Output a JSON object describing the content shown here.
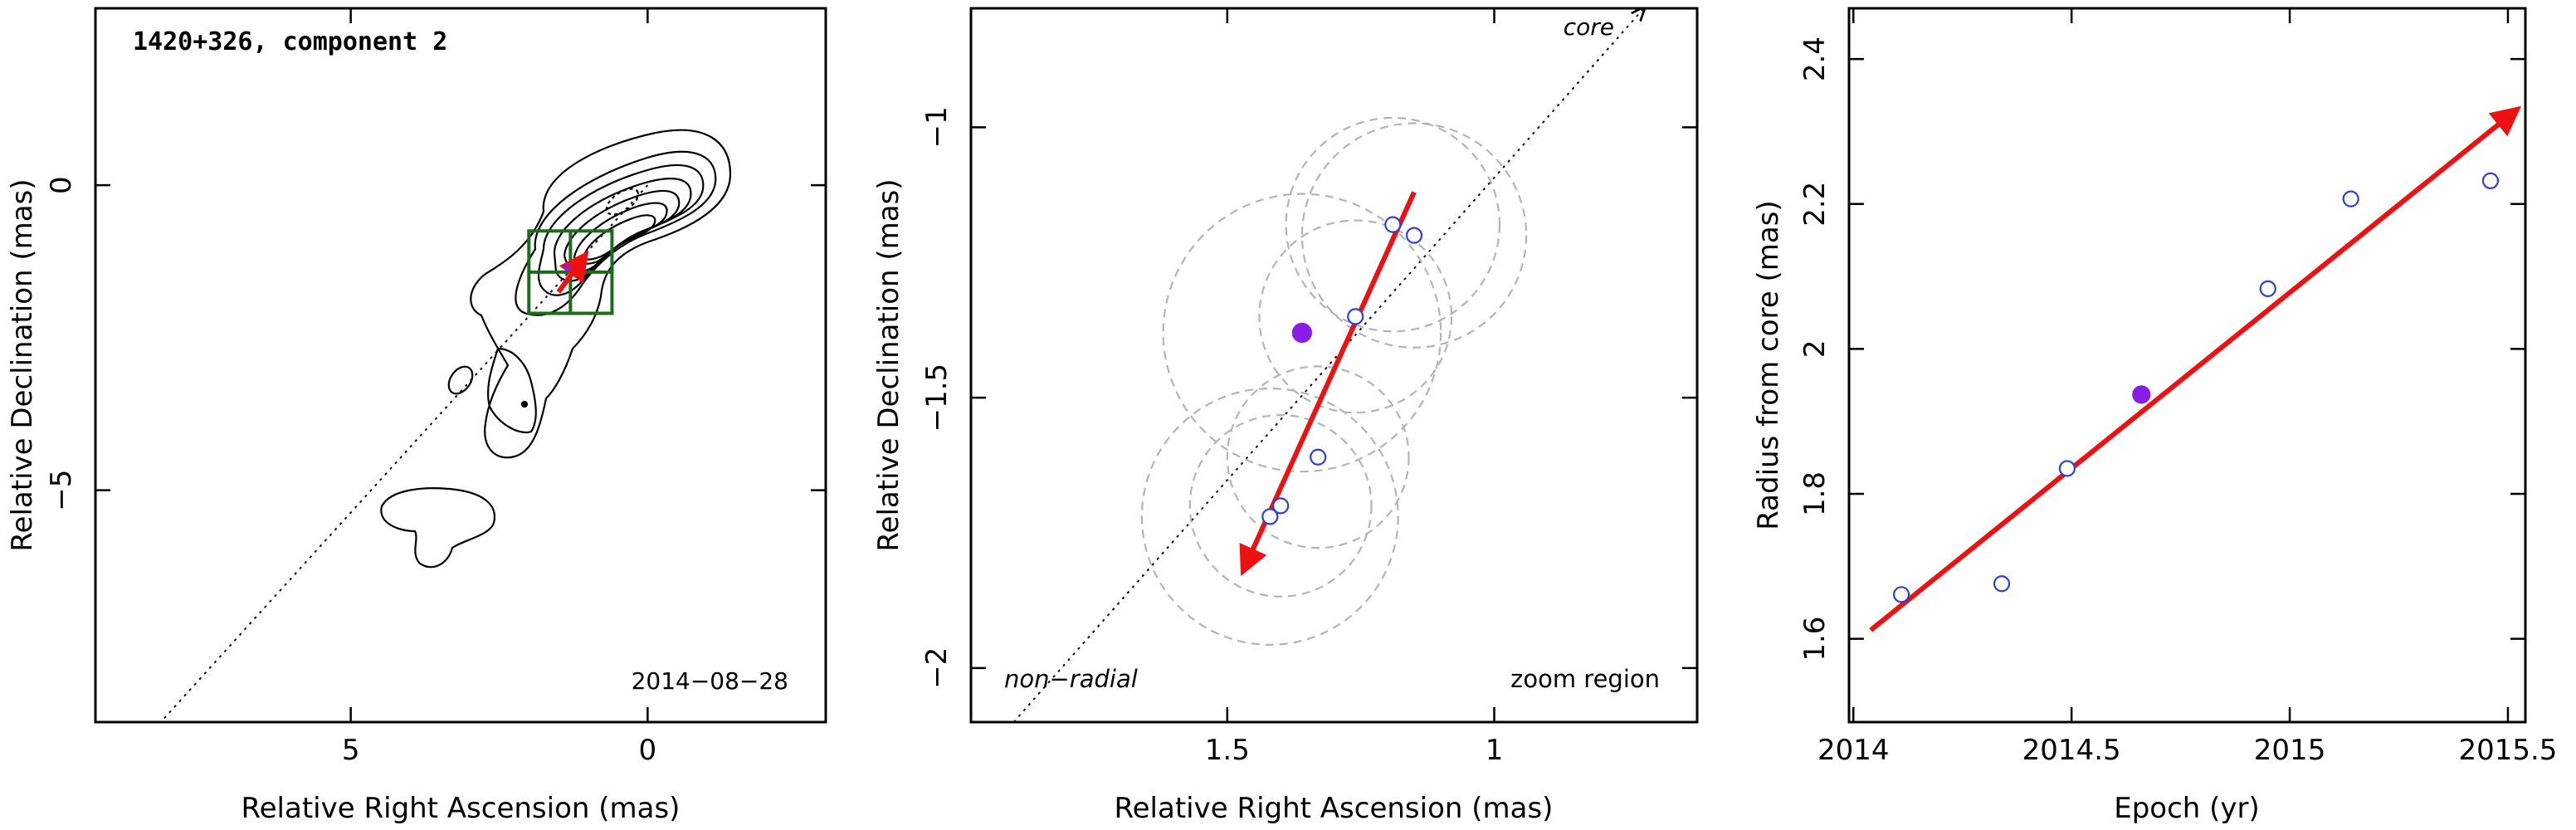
{
  "chart_data": [
    {
      "type": "contour",
      "title": "1420+326, component 2",
      "epoch_label": "2014−08−28",
      "xlabel": "Relative Right Ascension (mas)",
      "ylabel": "Relative Declination (mas)",
      "xlim": [
        9.3,
        -3.0
      ],
      "ylim": [
        -8.8,
        2.9
      ],
      "xticks": [
        {
          "v": 5,
          "label": "5"
        },
        {
          "v": 0,
          "label": "0"
        }
      ],
      "yticks": [
        {
          "v": 0,
          "label": "0"
        },
        {
          "v": -5,
          "label": "−5"
        }
      ],
      "x_reversed": true,
      "component_position": [
        1.35,
        -1.35
      ],
      "grid_box": {
        "x": [
          2.0,
          0.6
        ],
        "y": [
          -0.75,
          -2.1
        ]
      },
      "vector_start": [
        1.5,
        -1.75
      ],
      "vector_end": [
        1.05,
        -1.15
      ],
      "core_line": [
        [
          0,
          0
        ],
        [
          8.2,
          -8.8
        ]
      ]
    },
    {
      "type": "scatter",
      "zoom_label": "zoom region",
      "nonradial_label": "non−radial",
      "core_label": "core",
      "xlabel": "Relative Right Ascension (mas)",
      "ylabel": "Relative Declination (mas)",
      "xlim": [
        1.98,
        0.62
      ],
      "ylim": [
        -2.1,
        -0.78
      ],
      "xticks": [
        {
          "v": 1.5,
          "label": "1.5"
        },
        {
          "v": 1.0,
          "label": "1"
        }
      ],
      "yticks": [
        {
          "v": -1.0,
          "label": "−1"
        },
        {
          "v": -1.5,
          "label": "−1.5"
        },
        {
          "v": -2.0,
          "label": "−2"
        }
      ],
      "x_reversed": true,
      "points": [
        {
          "x": 1.42,
          "y": -1.72,
          "r": 0.24,
          "filled": false
        },
        {
          "x": 1.4,
          "y": -1.7,
          "r": 0.17,
          "filled": false
        },
        {
          "x": 1.33,
          "y": -1.61,
          "r": 0.17,
          "filled": false
        },
        {
          "x": 1.36,
          "y": -1.38,
          "r": 0.26,
          "filled": true
        },
        {
          "x": 1.26,
          "y": -1.35,
          "r": 0.18,
          "filled": false
        },
        {
          "x": 1.19,
          "y": -1.18,
          "r": 0.2,
          "filled": false
        },
        {
          "x": 1.15,
          "y": -1.2,
          "r": 0.21,
          "filled": false
        }
      ],
      "vector_start": [
        1.15,
        -1.12
      ],
      "vector_end": [
        1.47,
        -1.82
      ],
      "core_line": [
        [
          0.72,
          -0.78
        ],
        [
          1.9,
          -2.1
        ]
      ]
    },
    {
      "type": "scatter",
      "xlabel": "Epoch (yr)",
      "ylabel": "Radius from core (mas)",
      "xlim": [
        2013.99,
        2015.54
      ],
      "ylim": [
        1.485,
        2.47
      ],
      "xticks": [
        {
          "v": 2014,
          "label": "2014"
        },
        {
          "v": 2014.5,
          "label": "2014.5"
        },
        {
          "v": 2015,
          "label": "2015"
        },
        {
          "v": 2015.5,
          "label": "2015.5"
        }
      ],
      "yticks": [
        {
          "v": 1.6,
          "label": "1.6"
        },
        {
          "v": 1.8,
          "label": "1.8"
        },
        {
          "v": 2.0,
          "label": "2"
        },
        {
          "v": 2.2,
          "label": "2.2"
        },
        {
          "v": 2.4,
          "label": "2.4"
        }
      ],
      "points": [
        {
          "x": 2014.11,
          "y": 1.661,
          "filled": false
        },
        {
          "x": 2014.34,
          "y": 1.676,
          "filled": false
        },
        {
          "x": 2014.49,
          "y": 1.835,
          "filled": false
        },
        {
          "x": 2014.66,
          "y": 1.937,
          "filled": true
        },
        {
          "x": 2014.95,
          "y": 2.083,
          "filled": false
        },
        {
          "x": 2015.14,
          "y": 2.207,
          "filled": false
        },
        {
          "x": 2015.46,
          "y": 2.232,
          "filled": false
        }
      ],
      "fit_start": [
        2014.04,
        1.612
      ],
      "fit_end": [
        2015.52,
        2.33
      ]
    }
  ],
  "colors": {
    "axis": "#000000",
    "open_point": "#2c3fe0",
    "filled_point": "#8a1ee8",
    "vector": "#ee1111",
    "grid_box": "#1e6b1e",
    "error_circle": "#b4b4b4",
    "contour": "#000000"
  }
}
